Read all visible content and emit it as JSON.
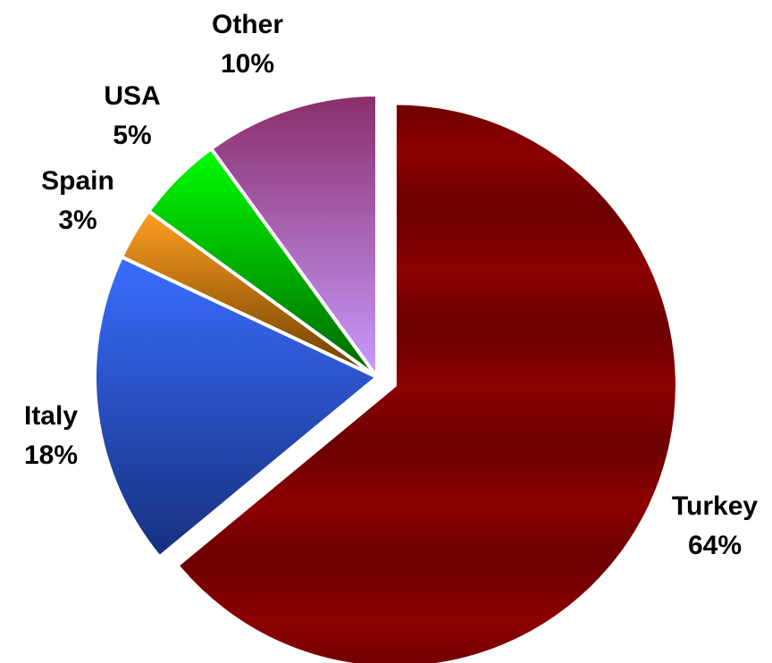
{
  "chart_data": {
    "type": "pie",
    "slices": [
      {
        "label": "Turkey",
        "percent_label": "64%",
        "value": 64,
        "colors": {
          "light": "#8c0000",
          "dark": "#6c0000"
        },
        "exploded": true
      },
      {
        "label": "Italy",
        "percent_label": "18%",
        "value": 18,
        "colors": {
          "light": "#3a6dff",
          "dark": "#16307e"
        }
      },
      {
        "label": "Spain",
        "percent_label": "3%",
        "value": 3,
        "colors": {
          "light": "#ffa020",
          "dark": "#6a3a00"
        }
      },
      {
        "label": "USA",
        "percent_label": "5%",
        "value": 5,
        "colors": {
          "light": "#00ff00",
          "dark": "#006400"
        }
      },
      {
        "label": "Other",
        "percent_label": "10%",
        "value": 10,
        "colors": {
          "light": "#c79cff",
          "dark": "#8a2e6a"
        }
      }
    ],
    "start": "12 o'clock",
    "direction": "clockwise",
    "legend": "none",
    "labels": "outside slices, name above percentage"
  }
}
